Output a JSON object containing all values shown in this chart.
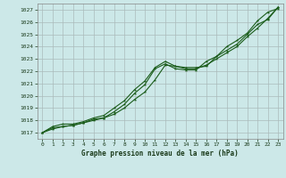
{
  "title": "Graphe pression niveau de la mer (hPa)",
  "bg_color": "#cce8e8",
  "plot_bg_color": "#cce8e8",
  "grid_color": "#aabbbb",
  "line_color": "#1a5c1a",
  "xlim": [
    -0.5,
    23.5
  ],
  "ylim": [
    1016.5,
    1027.5
  ],
  "yticks": [
    1017,
    1018,
    1019,
    1020,
    1021,
    1022,
    1023,
    1024,
    1025,
    1026,
    1027
  ],
  "xticks": [
    0,
    1,
    2,
    3,
    4,
    5,
    6,
    7,
    8,
    9,
    10,
    11,
    12,
    13,
    14,
    15,
    16,
    17,
    18,
    19,
    20,
    21,
    22,
    23
  ],
  "series": [
    [
      1017.0,
      1017.3,
      1017.5,
      1017.6,
      1017.8,
      1018.0,
      1018.2,
      1018.7,
      1019.3,
      1020.2,
      1020.9,
      1022.2,
      1022.6,
      1022.2,
      1022.1,
      1022.1,
      1022.8,
      1023.2,
      1024.0,
      1024.5,
      1025.1,
      1026.1,
      1026.8,
      1027.1
    ],
    [
      1017.0,
      1017.4,
      1017.5,
      1017.6,
      1017.8,
      1018.1,
      1018.2,
      1018.5,
      1019.0,
      1019.7,
      1020.3,
      1021.3,
      1022.5,
      1022.4,
      1022.2,
      1022.2,
      1022.5,
      1023.0,
      1023.5,
      1024.0,
      1024.8,
      1025.5,
      1026.3,
      1027.2
    ],
    [
      1017.0,
      1017.5,
      1017.7,
      1017.7,
      1017.9,
      1018.2,
      1018.4,
      1019.0,
      1019.6,
      1020.5,
      1021.2,
      1022.3,
      1022.8,
      1022.4,
      1022.3,
      1022.3,
      1022.4,
      1023.2,
      1023.7,
      1024.2,
      1025.0,
      1025.8,
      1026.2,
      1027.2
    ]
  ]
}
